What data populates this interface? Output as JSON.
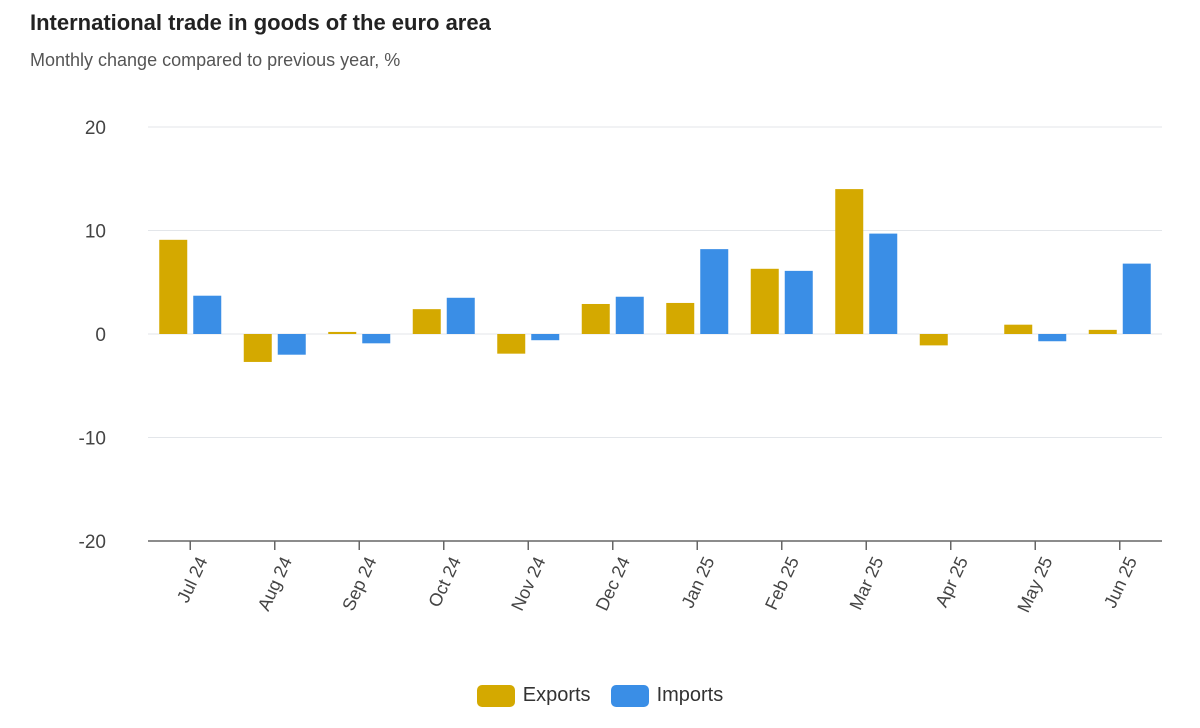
{
  "chart_data": {
    "type": "bar",
    "title": "International trade in goods of the euro area",
    "subtitle": "Monthly change compared to previous year, %",
    "xlabel": "",
    "ylabel": "",
    "categories": [
      "Jul 24",
      "Aug 24",
      "Sep 24",
      "Oct 24",
      "Nov 24",
      "Dec 24",
      "Jan 25",
      "Feb 25",
      "Mar 25",
      "Apr 25",
      "May 25",
      "Jun 25"
    ],
    "series": [
      {
        "name": "Exports",
        "color": "#d4a900",
        "values": [
          9.1,
          -2.7,
          0.2,
          2.4,
          -1.9,
          2.9,
          3.0,
          6.3,
          14.0,
          -1.1,
          0.9,
          0.4
        ]
      },
      {
        "name": "Imports",
        "color": "#3a8ee6",
        "values": [
          3.7,
          -2.0,
          -0.9,
          3.5,
          -0.6,
          3.6,
          8.2,
          6.1,
          9.7,
          null,
          -0.7,
          6.8
        ]
      }
    ],
    "ylim": [
      -20,
      20
    ],
    "yticks": [
      20,
      10,
      0,
      -10,
      -20
    ],
    "grid": true,
    "legend": "bottom-center"
  }
}
